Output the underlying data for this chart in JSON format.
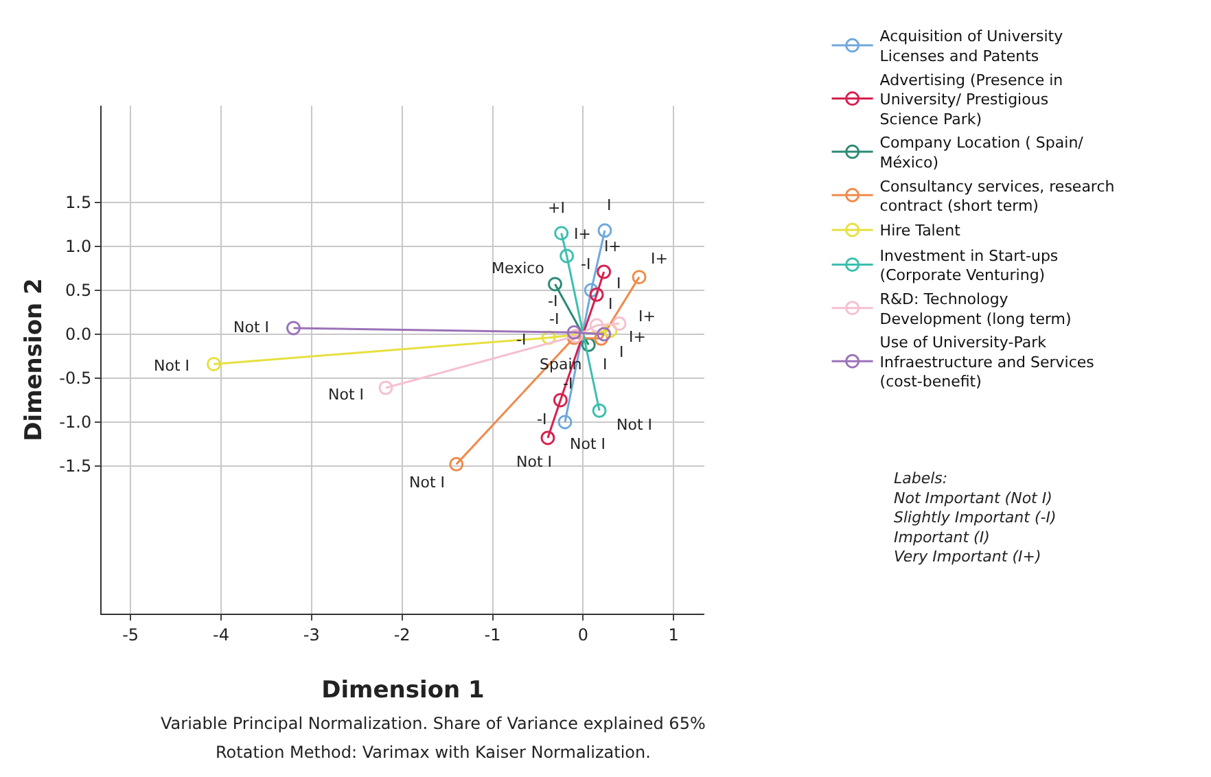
{
  "chart_data": {
    "type": "line",
    "xlabel": "Dimension 1",
    "ylabel": "Dimension 2",
    "xlim": [
      -5.32,
      1.34
    ],
    "ylim": [
      -3.18,
      2.6
    ],
    "xticks": [
      -5,
      -4,
      -3,
      -2,
      -1,
      0,
      1
    ],
    "yticks": [
      {
        "value": 1.5,
        "label": "1.5"
      },
      {
        "value": 1,
        "label": "1.0"
      },
      {
        "value": 0.5,
        "label": "0.5"
      },
      {
        "value": 0,
        "label": "0.0"
      },
      {
        "value": -0.5,
        "label": "-0.5"
      },
      {
        "value": -1,
        "label": "-1.0"
      },
      {
        "value": -1.5,
        "label": "-1.5"
      }
    ],
    "grid": true,
    "legend": "top right",
    "marker": "circle",
    "line_style": "solid",
    "series": [
      {
        "name": "Acquisition of University Licenses and Patents",
        "color": "#6fa8dc",
        "x": [
          -0.2,
          0.09,
          0.24
        ],
        "values": [
          -1.0,
          0.5,
          1.18
        ],
        "value_labels": [
          "Not I",
          "-I",
          "I"
        ]
      },
      {
        "name": "Advertising (Presence in University/ Prestigious Science Park)",
        "color": "#d6204e",
        "x": [
          -0.39,
          -0.25,
          0.15,
          0.23
        ],
        "values": [
          -1.18,
          -0.75,
          0.45,
          0.71
        ],
        "value_labels": [
          "Not I",
          "-I",
          "I",
          "I+"
        ]
      },
      {
        "name": "Company Location ( Spain/ México)",
        "color": "#2a8a74",
        "x": [
          -0.31,
          0.06
        ],
        "values": [
          0.57,
          -0.12
        ],
        "value_labels": [
          "Mexico",
          "Spain"
        ]
      },
      {
        "name": "Consultancy services, research contract (short term)",
        "color": "#f08a4b",
        "x": [
          -1.4,
          -0.1,
          0.2,
          0.62
        ],
        "values": [
          -1.48,
          -0.04,
          -0.05,
          0.65
        ],
        "value_labels": [
          "Not I",
          "-I",
          "I",
          "I+"
        ]
      },
      {
        "name": "Hire Talent",
        "color": "#e6e040",
        "x": [
          -4.08,
          -0.38,
          0.3
        ],
        "values": [
          -0.34,
          -0.04,
          0.04
        ],
        "value_labels": [
          "Not I",
          "-I",
          "I+"
        ]
      },
      {
        "name": "Investment in Start-ups (Corporate Venturing)",
        "color": "#3cbfae",
        "x": [
          0.18,
          -0.18,
          -0.24
        ],
        "values": [
          -0.87,
          0.89,
          1.15
        ],
        "value_labels": [
          "Not I",
          "I+",
          "+I"
        ]
      },
      {
        "name": "R&D: Technology Development (long term)",
        "color": "#f5c0d0",
        "x": [
          -2.18,
          -0.08,
          0.15,
          0.4
        ],
        "values": [
          -0.61,
          -0.02,
          0.1,
          0.12
        ],
        "value_labels": [
          "Not I",
          "-I",
          "I",
          "I+"
        ]
      },
      {
        "name": "Use of University-Park Infraestructure and Services (cost-benefit)",
        "color": "#9b72b8",
        "x": [
          -3.2,
          -0.1,
          0.23
        ],
        "values": [
          0.07,
          0.02,
          0.0
        ],
        "value_labels": [
          "Not I",
          "-I",
          "I"
        ]
      }
    ],
    "annotations": [
      "Labels:\nNot Important (Not I)\nSlightly Important (-I)\nImportant (I)\nVery Important (I+)",
      "Variable Principal Normalization. Share of Variance explained 65%",
      "Rotation Method: Varimax with Kaiser Normalization."
    ]
  }
}
